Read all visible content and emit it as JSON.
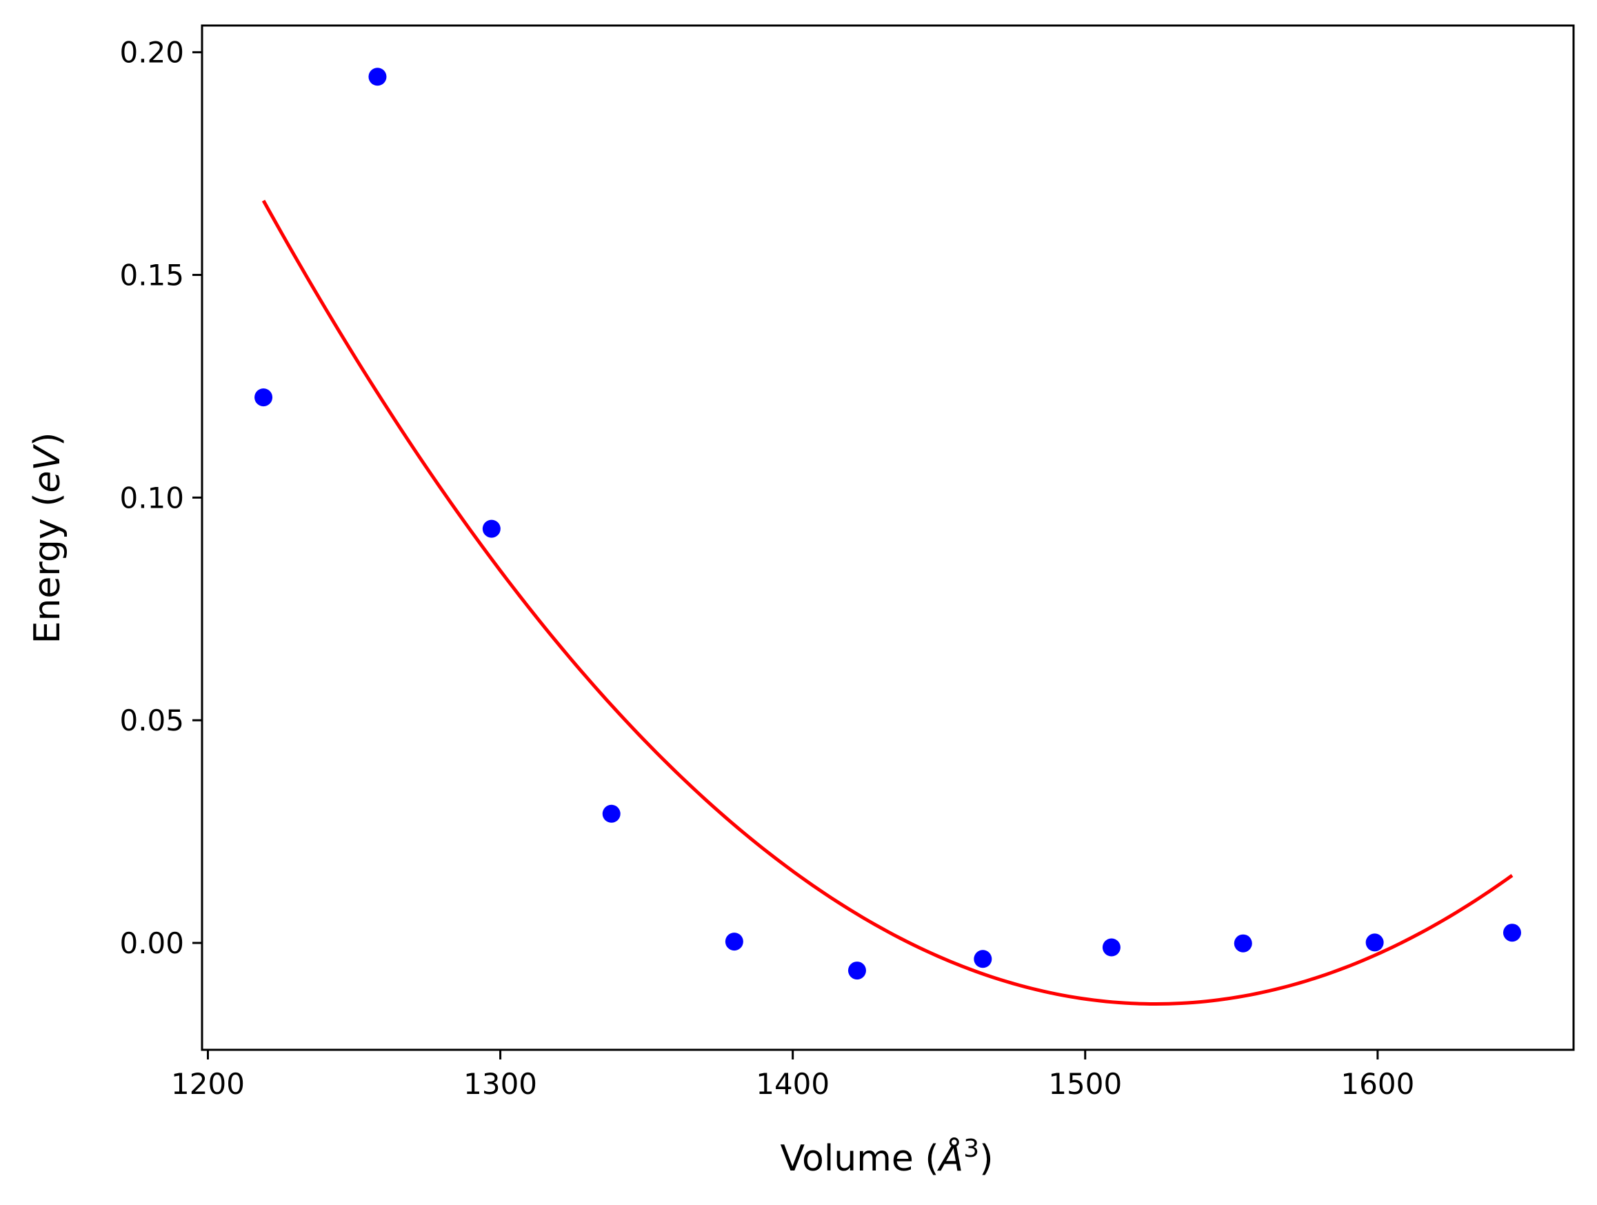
{
  "chart_data": {
    "type": "scatter",
    "title": "",
    "xlabel": {
      "prefix": "Volume (",
      "unit": "Å",
      "exponent": "3",
      "suffix": ")"
    },
    "ylabel": {
      "prefix": "Energy (",
      "unit": "eV",
      "suffix": ")"
    },
    "xlim": [
      1198,
      1667
    ],
    "ylim": [
      -0.024,
      0.206
    ],
    "x_ticks": [
      1200,
      1300,
      1400,
      1500,
      1600
    ],
    "x_tick_labels": [
      "1200",
      "1300",
      "1400",
      "1500",
      "1600"
    ],
    "y_ticks": [
      0.0,
      0.05,
      0.1,
      0.15,
      0.2
    ],
    "y_tick_labels": [
      "0.00",
      "0.05",
      "0.10",
      "0.15",
      "0.20"
    ],
    "grid": false,
    "series": [
      {
        "kind": "points",
        "color": "#0000ff",
        "x": [
          1219,
          1258,
          1297,
          1338,
          1380,
          1422,
          1465,
          1509,
          1554,
          1599,
          1646
        ],
        "y": [
          0.1225,
          0.1945,
          0.093,
          0.029,
          0.0003,
          -0.0062,
          -0.0036,
          -0.001,
          -0.0001,
          0.0001,
          0.0023
        ]
      },
      {
        "kind": "fit",
        "color": "#ff0000",
        "x_range": [
          1219,
          1646
        ],
        "fit_model": "quadratic",
        "vertex_x": 1524,
        "vertex_y": -0.0137,
        "curvature": 1.939e-06
      }
    ]
  }
}
